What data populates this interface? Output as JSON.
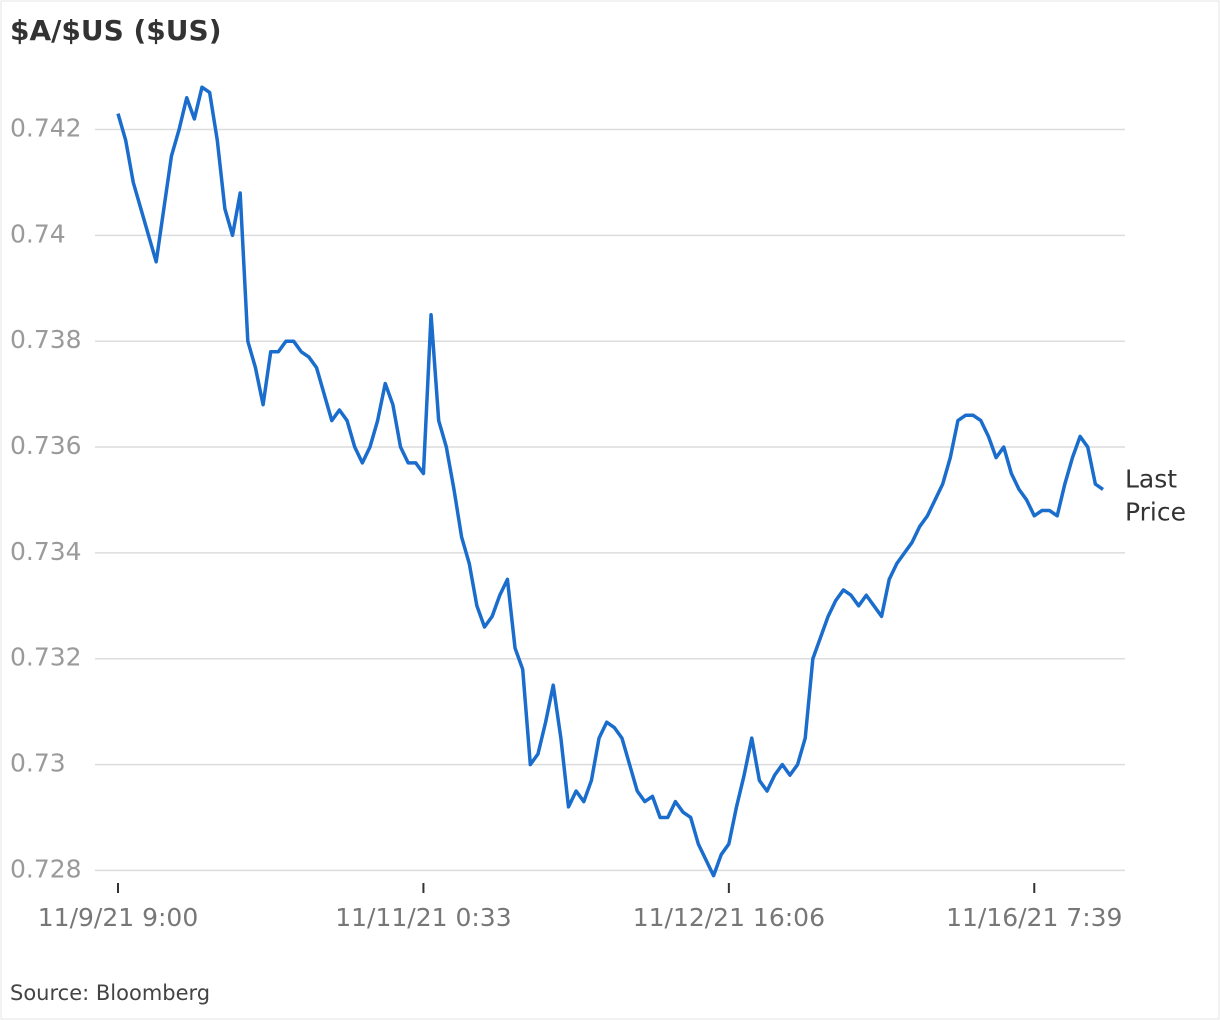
{
  "chart_data": {
    "type": "line",
    "title": "$A/$US ($US)",
    "source": "Source: Bloomberg",
    "annotation": "Last Price",
    "categories": [
      "11/9/21 9:00",
      null,
      null,
      null,
      null,
      null,
      null,
      null,
      null,
      null,
      null,
      null,
      null,
      null,
      null,
      null,
      null,
      null,
      null,
      null,
      null,
      null,
      null,
      null,
      null,
      null,
      null,
      null,
      null,
      null,
      null,
      null,
      null,
      null,
      null,
      null,
      null,
      null,
      null,
      null,
      "11/11/21 0:33",
      null,
      null,
      null,
      null,
      null,
      null,
      null,
      null,
      null,
      null,
      null,
      null,
      null,
      null,
      null,
      null,
      null,
      null,
      null,
      null,
      null,
      null,
      null,
      null,
      null,
      null,
      null,
      null,
      null,
      null,
      null,
      null,
      null,
      null,
      null,
      null,
      null,
      null,
      null,
      "11/12/21 16:06",
      null,
      null,
      null,
      null,
      null,
      null,
      null,
      null,
      null,
      null,
      null,
      null,
      null,
      null,
      null,
      null,
      null,
      null,
      null,
      null,
      null,
      null,
      null,
      null,
      null,
      null,
      null,
      null,
      null,
      null,
      null,
      null,
      null,
      null,
      null,
      null,
      null,
      null,
      null,
      "11/16/21 7:39",
      null,
      null,
      null,
      null,
      null,
      null,
      null,
      null,
      null
    ],
    "series": [
      {
        "name": "Last Price",
        "color": "#1a6dcc",
        "values": [
          0.7423,
          0.7418,
          0.741,
          0.7405,
          0.74,
          0.7395,
          0.7405,
          0.7415,
          0.742,
          0.7426,
          0.7422,
          0.7428,
          0.7427,
          0.7418,
          0.7405,
          0.74,
          0.7408,
          0.738,
          0.7375,
          0.7368,
          0.7378,
          0.7378,
          0.738,
          0.738,
          0.7378,
          0.7377,
          0.7375,
          0.737,
          0.7365,
          0.7367,
          0.7365,
          0.736,
          0.7357,
          0.736,
          0.7365,
          0.7372,
          0.7368,
          0.736,
          0.7357,
          0.7357,
          0.7355,
          0.7385,
          0.7365,
          0.736,
          0.7352,
          0.7343,
          0.7338,
          0.733,
          0.7326,
          0.7328,
          0.7332,
          0.7335,
          0.7322,
          0.7318,
          0.73,
          0.7302,
          0.7308,
          0.7315,
          0.7305,
          0.7292,
          0.7295,
          0.7293,
          0.7297,
          0.7305,
          0.7308,
          0.7307,
          0.7305,
          0.73,
          0.7295,
          0.7293,
          0.7294,
          0.729,
          0.729,
          0.7293,
          0.7291,
          0.729,
          0.7285,
          0.7282,
          0.7279,
          0.7283,
          0.7285,
          0.7292,
          0.7298,
          0.7305,
          0.7297,
          0.7295,
          0.7298,
          0.73,
          0.7298,
          0.73,
          0.7305,
          0.732,
          0.7324,
          0.7328,
          0.7331,
          0.7333,
          0.7332,
          0.733,
          0.7332,
          0.733,
          0.7328,
          0.7335,
          0.7338,
          0.734,
          0.7342,
          0.7345,
          0.7347,
          0.735,
          0.7353,
          0.7358,
          0.7365,
          0.7366,
          0.7366,
          0.7365,
          0.7362,
          0.7358,
          0.736,
          0.7355,
          0.7352,
          0.735,
          0.7347,
          0.7348,
          0.7348,
          0.7347,
          0.7353,
          0.7358,
          0.7362,
          0.736,
          0.7353,
          0.7352
        ]
      }
    ],
    "ylim": [
      0.7278,
      0.7432
    ],
    "yticks": [
      0.728,
      0.73,
      0.732,
      0.734,
      0.736,
      0.738,
      0.74,
      0.742
    ],
    "grid": true
  }
}
